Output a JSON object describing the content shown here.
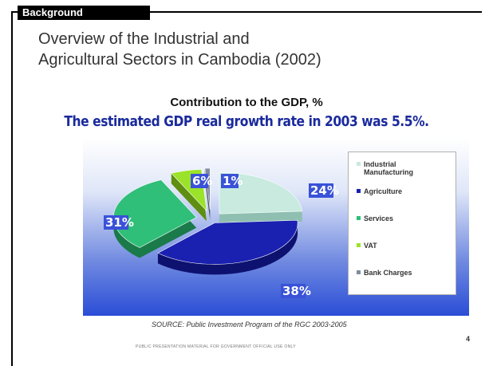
{
  "slide": {
    "section_tag": "Background",
    "title_line1": "Overview of the Industrial and",
    "title_line2": "Agricultural Sectors in Cambodia (2002)",
    "source": "SOURCE: Public Investment Program of the RGC 2003-2005",
    "footer": "PUBLIC PRESENTATION MATERIAL FOR GOVERNMENT OFFICIAL USE ONLY",
    "page_number": "4"
  },
  "chart_data": {
    "type": "pie",
    "title": "Contribution to the GDP, %",
    "subtitle": "The estimated GDP real growth rate in 2003 was 5.5%.",
    "legend_position": "right",
    "slices": [
      {
        "name": "Industrial Manufacturing",
        "value": 24,
        "label": "24%",
        "color": "#c8eadf",
        "side": "#8fbfb0"
      },
      {
        "name": "Agriculture",
        "value": 38,
        "label": "38%",
        "color": "#1a20b0",
        "side": "#0d1270"
      },
      {
        "name": "Services",
        "value": 31,
        "label": "31%",
        "color": "#2fbf78",
        "side": "#1a7a4a"
      },
      {
        "name": "VAT",
        "value": 6,
        "label": "6%",
        "color": "#9be22a",
        "side": "#5f8f12"
      },
      {
        "name": "Bank Charges",
        "value": 1,
        "label": "1%",
        "color": "#7f8ca0",
        "side": "#4c5566"
      }
    ]
  }
}
